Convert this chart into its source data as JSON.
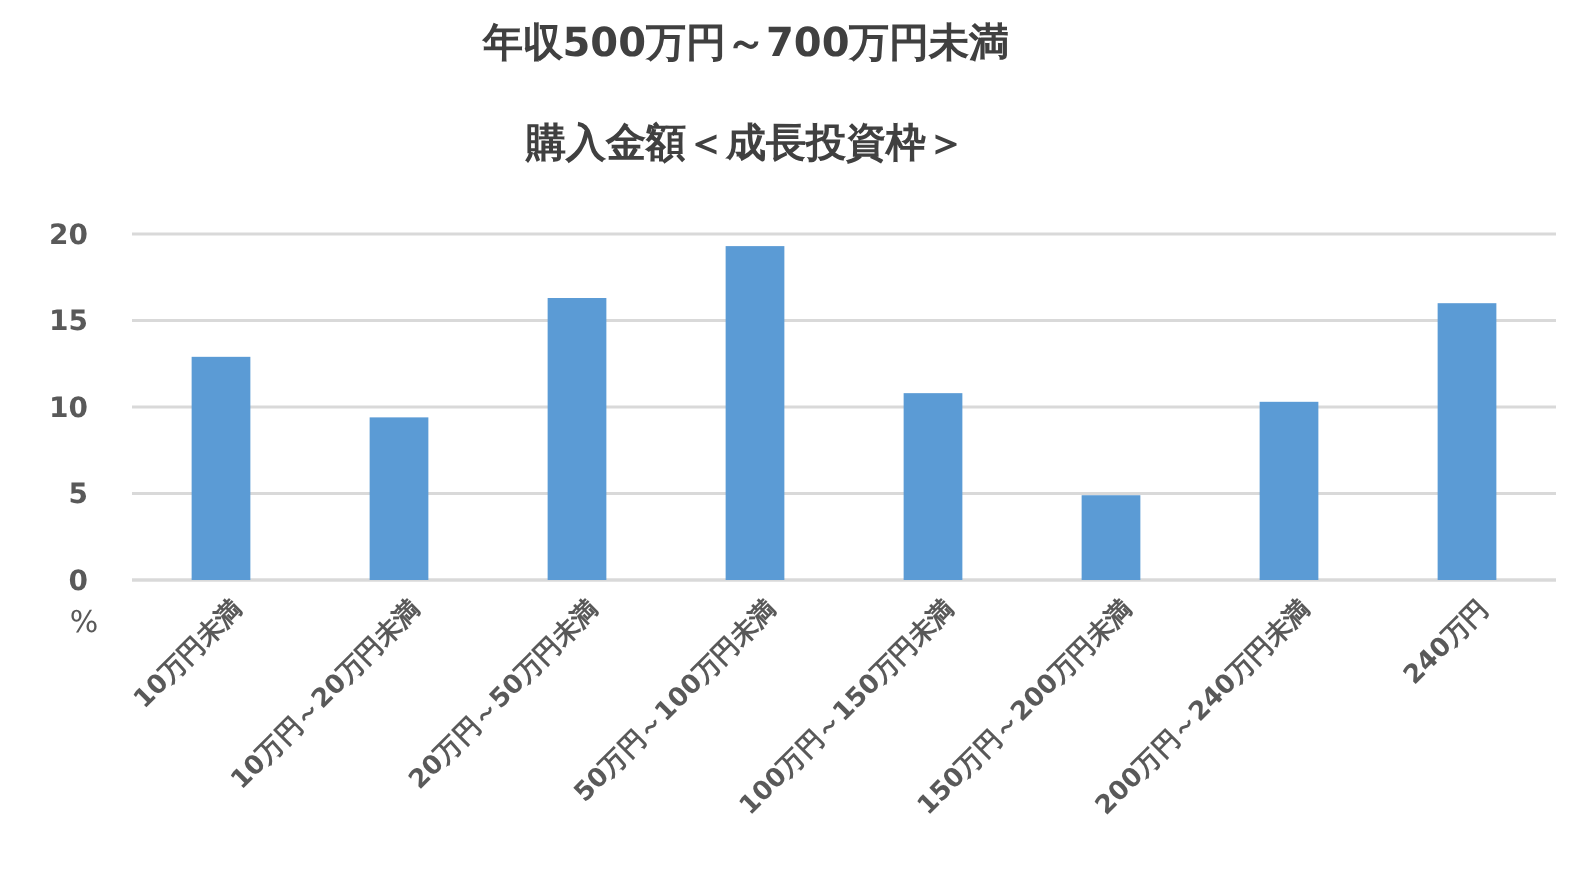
{
  "chart_data": {
    "type": "bar",
    "title": "年収500万円～700万円未満",
    "subtitle": "購入金額＜成長投資枠＞",
    "ylabel": "%",
    "categories": [
      "10万円未満",
      "10万円～20万円未満",
      "20万円～50万円未満",
      "50万円～100万円未満",
      "100万円～150万円未満",
      "150万円～200万円未満",
      "200万円～240万円未満",
      "240万円"
    ],
    "values": [
      12.9,
      9.4,
      16.3,
      19.3,
      10.8,
      4.9,
      10.3,
      16.0
    ],
    "color": "#5b9bd5",
    "ylim": [
      0,
      20
    ],
    "yticks": [
      0,
      5,
      10,
      15,
      20
    ],
    "grid": "y"
  }
}
